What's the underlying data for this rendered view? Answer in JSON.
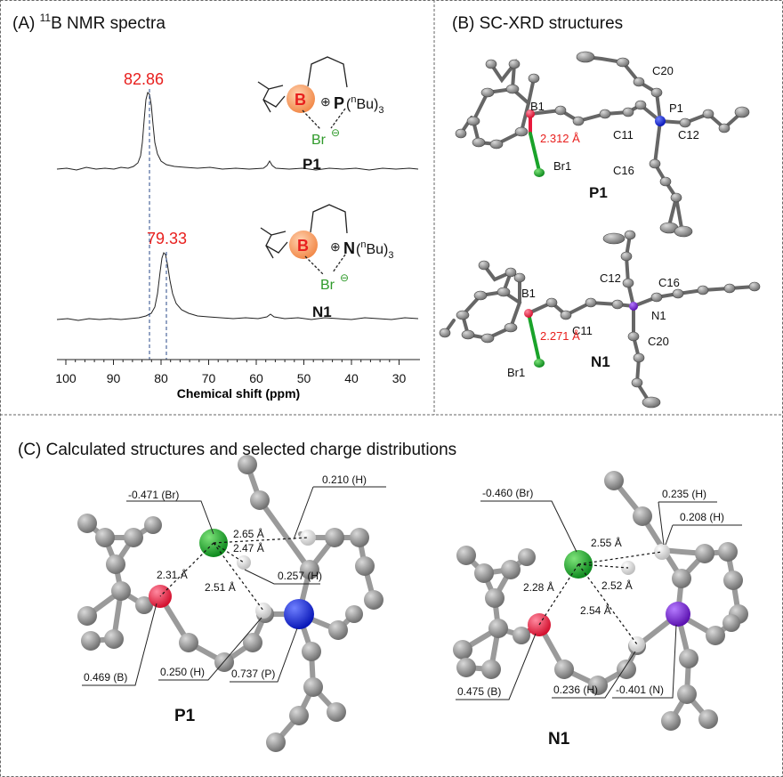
{
  "panelA": {
    "title_prefix": "(A) ",
    "title_sup": "11",
    "title_main": "B NMR spectra",
    "peak_p1": "82.86",
    "peak_n1": "79.33",
    "label_p1": "P1",
    "label_n1": "N1",
    "xlabel": "Chemical shift (ppm)",
    "xticks": [
      "100",
      "90",
      "80",
      "70",
      "60",
      "50",
      "40",
      "30"
    ],
    "struct_p1": {
      "boron": "B",
      "cation": "⊕",
      "heteroatom": "P",
      "sub": "(nBu)3",
      "halide": "Br",
      "anion": "⊖"
    },
    "struct_n1": {
      "boron": "B",
      "cation": "⊕",
      "heteroatom": "N",
      "sub": "(nBu)3",
      "halide": "Br",
      "anion": "⊖"
    }
  },
  "panelB": {
    "title": "(B) SC-XRD structures",
    "p1": {
      "label": "P1",
      "bond": "2.312 Å",
      "atoms": [
        "B1",
        "Br1",
        "C11",
        "C12",
        "C16",
        "C20",
        "P1"
      ]
    },
    "n1": {
      "label": "N1",
      "bond": "2.271 Å",
      "atoms": [
        "B1",
        "Br1",
        "C11",
        "C12",
        "C16",
        "C20",
        "N1"
      ]
    }
  },
  "panelC": {
    "title": "(C) Calculated structures and selected charge distributions",
    "p1": {
      "label": "P1",
      "charges": [
        "-0.471 (Br)",
        "0.210 (H)",
        "0.257 (H)",
        "0.469 (B)",
        "0.250 (H)",
        "0.737 (P)"
      ],
      "distances": [
        "2.65 Å",
        "2.47 Å",
        "2.31 Å",
        "2.51 Å"
      ]
    },
    "n1": {
      "label": "N1",
      "charges": [
        "-0.460 (Br)",
        "0.235 (H)",
        "0.208 (H)",
        "0.475 (B)",
        "0.236 (H)",
        "-0.401 (N)"
      ],
      "distances": [
        "2.55 Å",
        "2.52 Å",
        "2.28 Å",
        "2.54 Å"
      ]
    }
  },
  "colors": {
    "peak_label": "#e8201e",
    "boron": "#e8193c",
    "bromine": "#1aa32a",
    "phosphorus": "#1b2bd6",
    "nitrogen": "#7a1fd1",
    "carbon": "#8c8c8c",
    "hydrogen": "#f2f2f2"
  }
}
